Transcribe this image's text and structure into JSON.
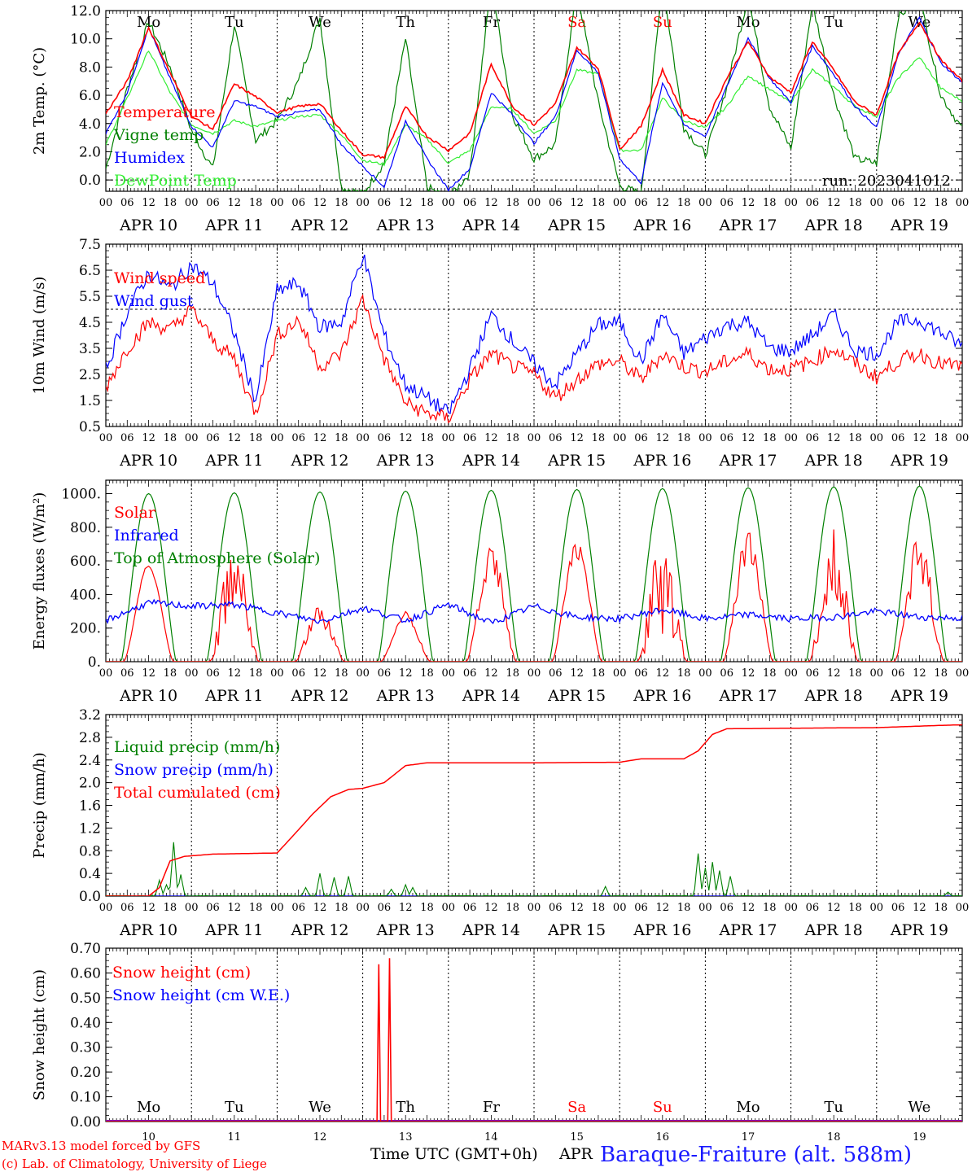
{
  "days": [
    {
      "abbr": "Mo",
      "date": "APR 10",
      "num": "10",
      "weekend": false
    },
    {
      "abbr": "Tu",
      "date": "APR 11",
      "num": "11",
      "weekend": false
    },
    {
      "abbr": "We",
      "date": "APR 12",
      "num": "12",
      "weekend": false
    },
    {
      "abbr": "Th",
      "date": "APR 13",
      "num": "13",
      "weekend": false
    },
    {
      "abbr": "Fr",
      "date": "APR 14",
      "num": "14",
      "weekend": false
    },
    {
      "abbr": "Sa",
      "date": "APR 15",
      "num": "15",
      "weekend": true
    },
    {
      "abbr": "Su",
      "date": "APR 16",
      "num": "16",
      "weekend": true
    },
    {
      "abbr": "Mo",
      "date": "APR 17",
      "num": "17",
      "weekend": false
    },
    {
      "abbr": "Tu",
      "date": "APR 18",
      "num": "18",
      "weekend": false
    },
    {
      "abbr": "We",
      "date": "APR 19",
      "num": "19",
      "weekend": false
    }
  ],
  "hour_labels": [
    "00",
    "06",
    "12",
    "18"
  ],
  "final_hour_label": "00",
  "colors": {
    "red": "#ff0000",
    "blue": "#0000ff",
    "green": "#008000",
    "lightgreen": "#33ee33",
    "text": "#000000",
    "weekend": "#ff0000",
    "station": "#1a1aff"
  },
  "footer": {
    "model": "MARv3.13 model forced by GFS",
    "credit": "(c) Lab. of Climatology, University of Liege",
    "time_label": "Time UTC (GMT+0h)",
    "month": "APR",
    "station": "Baraque-Fraiture (alt. 588m)"
  },
  "chart_data": [
    {
      "type": "line",
      "ylabel": "2m Temp. (°C)",
      "ylim": [
        -0.8,
        12.0
      ],
      "yticks": [
        "0.0",
        "2.0",
        "4.0",
        "6.0",
        "8.0",
        "10.0",
        "12.0"
      ],
      "ref_line": 0.0,
      "note": "run: 2023041012",
      "x": [
        0,
        6,
        12,
        18,
        24,
        30,
        36,
        42,
        48,
        54,
        60,
        66,
        72,
        78,
        84,
        90,
        96,
        102,
        108,
        114,
        120,
        126,
        132,
        138,
        144,
        150,
        156,
        162,
        168,
        174,
        180,
        186,
        192,
        198,
        204,
        210,
        216,
        222,
        228,
        234,
        240
      ],
      "series": [
        {
          "name": "Temperature",
          "color": "#ff0000",
          "values": [
            4.7,
            7.0,
            10.8,
            7.6,
            4.5,
            3.6,
            6.8,
            5.9,
            4.8,
            5.2,
            5.4,
            3.5,
            1.8,
            1.6,
            5.2,
            3.1,
            2.1,
            3.3,
            8.2,
            5.2,
            3.9,
            5.4,
            9.4,
            7.9,
            2.2,
            3.8,
            7.8,
            4.6,
            4.0,
            7.2,
            9.8,
            7.3,
            6.2,
            9.8,
            7.8,
            5.5,
            4.6,
            8.9,
            11.2,
            8.5,
            7.0
          ]
        },
        {
          "name": "Vigne temp",
          "color": "#008000",
          "values": [
            0.8,
            6.5,
            11.2,
            8.0,
            3.5,
            0.8,
            11.0,
            2.8,
            4.2,
            7.0,
            11.5,
            -0.5,
            -1.0,
            1.2,
            10.0,
            -0.5,
            -1.3,
            0.5,
            14.0,
            4.6,
            1.5,
            2.5,
            13.5,
            5.5,
            -0.4,
            -1.0,
            14.0,
            3.7,
            1.8,
            6.5,
            13.0,
            5.2,
            2.2,
            12.5,
            6.0,
            1.5,
            1.2,
            11.5,
            13.0,
            6.0,
            3.6
          ]
        },
        {
          "name": "Humidex",
          "color": "#0000ff",
          "values": [
            3.3,
            6.2,
            10.8,
            7.2,
            3.8,
            2.3,
            5.6,
            5.2,
            4.5,
            4.8,
            5.0,
            2.5,
            1.0,
            -0.5,
            4.2,
            1.5,
            -0.7,
            0.8,
            6.2,
            4.6,
            2.6,
            4.5,
            9.2,
            7.6,
            1.5,
            -0.2,
            6.9,
            3.9,
            3.1,
            6.6,
            10.1,
            7.2,
            5.5,
            9.5,
            7.5,
            5.2,
            3.7,
            8.8,
            11.5,
            8.3,
            6.9
          ]
        },
        {
          "name": "DewPoint Temp",
          "color": "#33ee33",
          "values": [
            2.5,
            5.8,
            9.2,
            6.2,
            3.9,
            3.3,
            4.2,
            3.8,
            4.2,
            4.5,
            4.6,
            3.2,
            1.4,
            1.1,
            3.9,
            2.9,
            1.2,
            2.1,
            5.2,
            5.0,
            3.3,
            4.2,
            7.8,
            7.5,
            2.1,
            2.1,
            5.8,
            4.2,
            3.7,
            5.2,
            7.4,
            6.4,
            5.5,
            7.8,
            6.6,
            5.2,
            4.5,
            7.2,
            8.7,
            6.5,
            5.6
          ]
        }
      ]
    },
    {
      "type": "line",
      "ylabel": "10m Wind (m/s)",
      "ylim": [
        0.5,
        7.5
      ],
      "yticks": [
        "0.5",
        "1.5",
        "2.5",
        "3.5",
        "4.5",
        "5.5",
        "6.5",
        "7.5"
      ],
      "ref_line": 5.0,
      "x": [
        0,
        6,
        12,
        18,
        24,
        30,
        36,
        42,
        48,
        54,
        60,
        66,
        72,
        78,
        84,
        90,
        96,
        102,
        108,
        114,
        120,
        126,
        132,
        138,
        144,
        150,
        156,
        162,
        168,
        174,
        180,
        186,
        192,
        198,
        204,
        210,
        216,
        222,
        228,
        234,
        240
      ],
      "series": [
        {
          "name": "Wind speed",
          "color": "#ff0000",
          "values": [
            2.0,
            3.5,
            4.5,
            4.2,
            5.0,
            3.8,
            3.1,
            1.0,
            4.0,
            4.6,
            2.8,
            3.3,
            5.4,
            3.1,
            1.4,
            1.0,
            0.8,
            2.3,
            3.3,
            2.8,
            2.5,
            1.6,
            2.3,
            2.9,
            3.0,
            2.3,
            3.3,
            2.8,
            2.6,
            3.0,
            3.3,
            2.7,
            2.7,
            3.0,
            3.5,
            2.9,
            2.4,
            3.0,
            3.3,
            2.9,
            2.8
          ]
        },
        {
          "name": "Wind gust",
          "color": "#0000ff",
          "values": [
            2.7,
            4.9,
            6.4,
            5.8,
            6.7,
            6.0,
            4.1,
            1.5,
            5.7,
            6.0,
            4.3,
            4.5,
            7.1,
            4.0,
            2.1,
            1.6,
            1.0,
            2.7,
            4.8,
            3.8,
            2.9,
            2.1,
            3.3,
            4.4,
            4.5,
            3.0,
            4.8,
            3.3,
            3.9,
            4.4,
            4.5,
            3.5,
            3.4,
            4.0,
            4.8,
            3.4,
            3.3,
            4.5,
            4.6,
            4.1,
            3.6
          ]
        }
      ]
    },
    {
      "type": "line",
      "ylabel": "Energy fluxes (W/m²)",
      "ylim": [
        0,
        1080
      ],
      "yticks": [
        "0.",
        "200.",
        "400.",
        "600.",
        "800.",
        "1000."
      ],
      "solar_peaks": [
        580,
        720,
        340,
        300,
        700,
        720,
        760,
        780,
        790,
        760
      ],
      "toa_peaks": [
        1000,
        1005,
        1010,
        1015,
        1020,
        1025,
        1030,
        1035,
        1040,
        1045
      ],
      "infrared": [
        245,
        350,
        330,
        340,
        290,
        240,
        320,
        245,
        340,
        230,
        330,
        265,
        255,
        310,
        255,
        280,
        255,
        265,
        300,
        265,
        260
      ],
      "series": [
        {
          "name": "Solar",
          "color": "#ff0000"
        },
        {
          "name": "Infrared",
          "color": "#0000ff"
        },
        {
          "name": "Top of Atmosphere (Solar)",
          "color": "#008000"
        }
      ]
    },
    {
      "type": "line",
      "ylabel": "Precip (mm/h)",
      "ylim": [
        0.0,
        3.2
      ],
      "yticks": [
        "0.0",
        "0.4",
        "0.8",
        "1.2",
        "1.6",
        "2.0",
        "2.4",
        "2.8",
        "3.2"
      ],
      "cumulated": {
        "x": [
          0,
          12,
          15,
          18,
          22,
          30,
          48,
          53,
          58,
          63,
          68,
          72,
          78,
          84,
          90,
          120,
          144,
          150,
          162,
          166,
          170,
          174,
          192,
          216,
          234,
          240
        ],
        "values": [
          0.0,
          0.0,
          0.15,
          0.62,
          0.7,
          0.74,
          0.76,
          1.1,
          1.45,
          1.75,
          1.88,
          1.9,
          2.0,
          2.3,
          2.35,
          2.35,
          2.36,
          2.42,
          2.42,
          2.56,
          2.85,
          2.95,
          2.96,
          2.97,
          3.01,
          3.02
        ]
      },
      "liquid_spikes": [
        {
          "x": 15,
          "v": 0.28
        },
        {
          "x": 17,
          "v": 0.2
        },
        {
          "x": 19,
          "v": 0.95
        },
        {
          "x": 21,
          "v": 0.38
        },
        {
          "x": 56,
          "v": 0.15
        },
        {
          "x": 60,
          "v": 0.4
        },
        {
          "x": 64,
          "v": 0.33
        },
        {
          "x": 68,
          "v": 0.35
        },
        {
          "x": 80,
          "v": 0.12
        },
        {
          "x": 84,
          "v": 0.2
        },
        {
          "x": 86,
          "v": 0.15
        },
        {
          "x": 140,
          "v": 0.17
        },
        {
          "x": 166,
          "v": 0.75
        },
        {
          "x": 168,
          "v": 0.5
        },
        {
          "x": 170,
          "v": 0.6
        },
        {
          "x": 172,
          "v": 0.45
        },
        {
          "x": 175,
          "v": 0.35
        },
        {
          "x": 236,
          "v": 0.07
        }
      ],
      "series": [
        {
          "name": "Liquid precip (mm/h)",
          "color": "#008000"
        },
        {
          "name": "Snow precip (mm/h)",
          "color": "#0000ff"
        },
        {
          "name": "Total cumulated (cm)",
          "color": "#ff0000"
        }
      ]
    },
    {
      "type": "line",
      "ylabel": "Snow height (cm)",
      "ylim": [
        0.0,
        0.7
      ],
      "yticks": [
        "0.00",
        "0.10",
        "0.20",
        "0.30",
        "0.40",
        "0.50",
        "0.60",
        "0.70"
      ],
      "spikes": [
        {
          "x": 76.5,
          "v": 0.635
        },
        {
          "x": 79.5,
          "v": 0.66
        }
      ],
      "series": [
        {
          "name": "Snow height (cm)",
          "color": "#ff0000"
        },
        {
          "name": "Snow height (cm W.E.)",
          "color": "#0000ff"
        }
      ]
    }
  ]
}
